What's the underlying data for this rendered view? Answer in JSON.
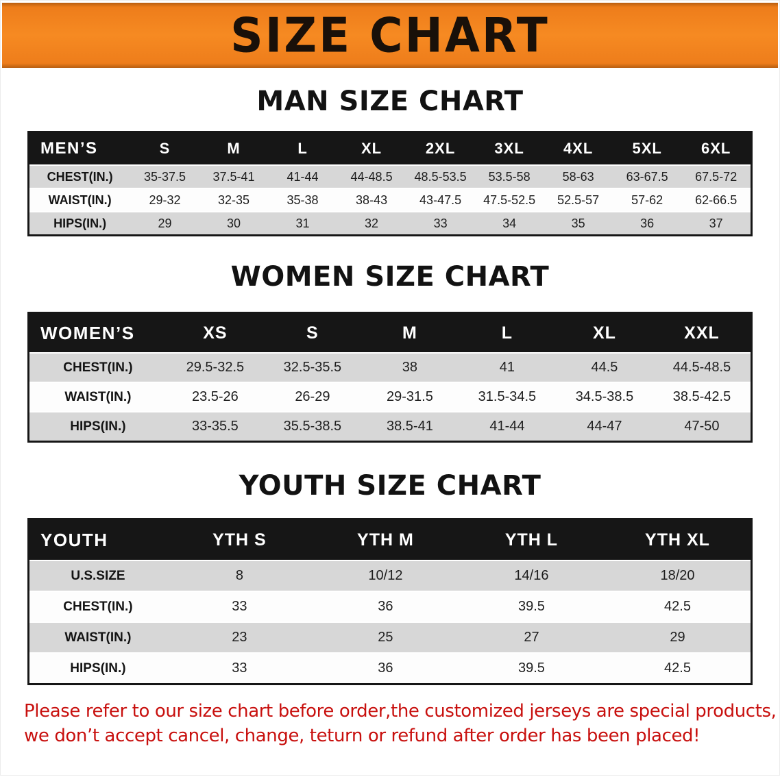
{
  "banner": {
    "title": "SIZE CHART",
    "bg_color": "#F5831E",
    "text_color": "#191009"
  },
  "sections": [
    {
      "heading": "MAN SIZE CHART",
      "table": {
        "header": [
          "MEN’S",
          "S",
          "M",
          "L",
          "XL",
          "2XL",
          "3XL",
          "4XL",
          "5XL",
          "6XL"
        ],
        "rows": [
          [
            "CHEST(IN.)",
            "35-37.5",
            "37.5-41",
            "41-44",
            "44-48.5",
            "48.5-53.5",
            "53.5-58",
            "58-63",
            "63-67.5",
            "67.5-72"
          ],
          [
            "WAIST(IN.)",
            "29-32",
            "32-35",
            "35-38",
            "38-43",
            "43-47.5",
            "47.5-52.5",
            "52.5-57",
            "57-62",
            "62-66.5"
          ],
          [
            "HIPS(IN.)",
            "29",
            "30",
            "31",
            "32",
            "33",
            "34",
            "35",
            "36",
            "37"
          ]
        ]
      }
    },
    {
      "heading": "WOMEN SIZE CHART",
      "table": {
        "header": [
          "WOMEN’S",
          "XS",
          "S",
          "M",
          "L",
          "XL",
          "XXL"
        ],
        "rows": [
          [
            "CHEST(IN.)",
            "29.5-32.5",
            "32.5-35.5",
            "38",
            "41",
            "44.5",
            "44.5-48.5"
          ],
          [
            "WAIST(IN.)",
            "23.5-26",
            "26-29",
            "29-31.5",
            "31.5-34.5",
            "34.5-38.5",
            "38.5-42.5"
          ],
          [
            "HIPS(IN.)",
            "33-35.5",
            "35.5-38.5",
            "38.5-41",
            "41-44",
            "44-47",
            "47-50"
          ]
        ]
      }
    },
    {
      "heading": "YOUTH SIZE CHART",
      "table": {
        "header": [
          "YOUTH",
          "YTH S",
          "YTH M",
          "YTH L",
          "YTH XL"
        ],
        "rows": [
          [
            "U.S.SIZE",
            "8",
            "10/12",
            "14/16",
            "18/20"
          ],
          [
            "CHEST(IN.)",
            "33",
            "36",
            "39.5",
            "42.5"
          ],
          [
            "WAIST(IN.)",
            "23",
            "25",
            "27",
            "29"
          ],
          [
            "HIPS(IN.)",
            "33",
            "36",
            "39.5",
            "42.5"
          ]
        ]
      }
    }
  ],
  "disclaimer": {
    "color": "#C8100E",
    "lines": [
      "Please refer to our size chart before order,the customized jerseys are special products,",
      "we don’t accept cancel, change, teturn or refund after order has been placed!"
    ]
  }
}
